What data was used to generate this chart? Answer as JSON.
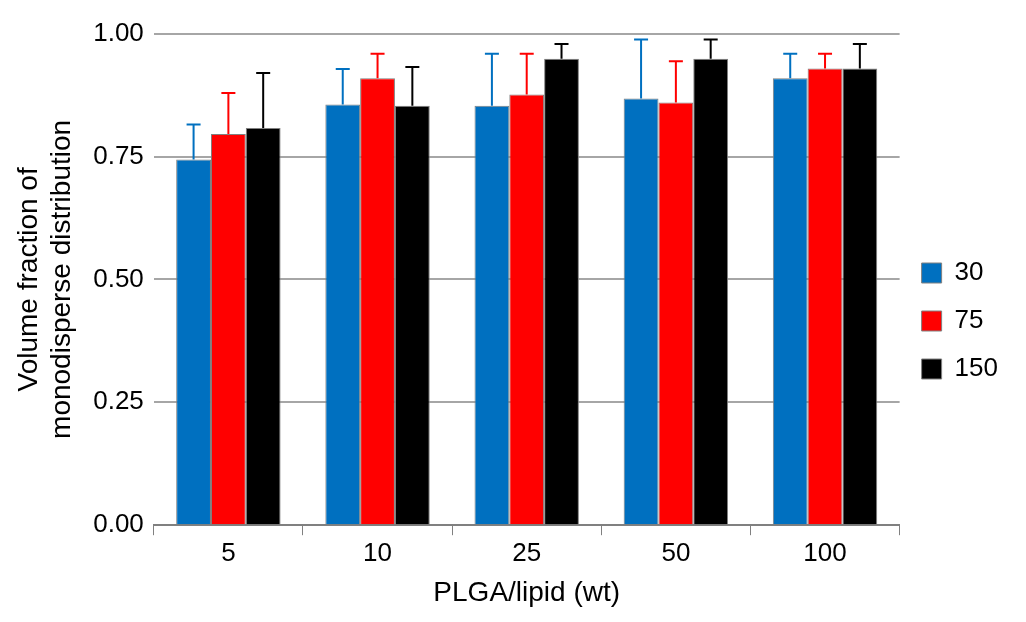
{
  "chart_data": {
    "type": "bar",
    "xlabel": "PLGA/lipid (wt)",
    "ylabel": "Volume fraction of monodisperse distribution",
    "categories": [
      "5",
      "10",
      "25",
      "50",
      "100"
    ],
    "series": [
      {
        "name": "30",
        "color": "#0070c0",
        "values": [
          0.744,
          0.856,
          0.853,
          0.868,
          0.909
        ],
        "errors": [
          [
            0.744,
            0.815
          ],
          [
            0.856,
            0.928
          ],
          [
            0.853,
            0.959
          ],
          [
            0.868,
            0.988
          ],
          [
            0.909,
            0.959
          ]
        ]
      },
      {
        "name": "75",
        "color": "#ff0000",
        "values": [
          0.796,
          0.909,
          0.876,
          0.86,
          0.929
        ],
        "errors": [
          [
            0.796,
            0.879
          ],
          [
            0.909,
            0.959
          ],
          [
            0.876,
            0.959
          ],
          [
            0.86,
            0.944
          ],
          [
            0.929,
            0.959
          ]
        ]
      },
      {
        "name": "150",
        "color": "#000000",
        "values": [
          0.808,
          0.853,
          0.949,
          0.949,
          0.929
        ],
        "errors": [
          [
            0.808,
            0.92
          ],
          [
            0.853,
            0.932
          ],
          [
            0.949,
            0.979
          ],
          [
            0.949,
            0.988
          ],
          [
            0.929,
            0.979
          ]
        ]
      }
    ],
    "ylim": [
      0,
      1
    ],
    "yticks": [
      {
        "value": 0,
        "label": "0.00"
      },
      {
        "value": 0.25,
        "label": "0.25"
      },
      {
        "value": 0.5,
        "label": "0.50"
      },
      {
        "value": 0.75,
        "label": "0.75"
      },
      {
        "value": 1,
        "label": "1.00"
      }
    ],
    "grid": "y",
    "legend": "right"
  }
}
